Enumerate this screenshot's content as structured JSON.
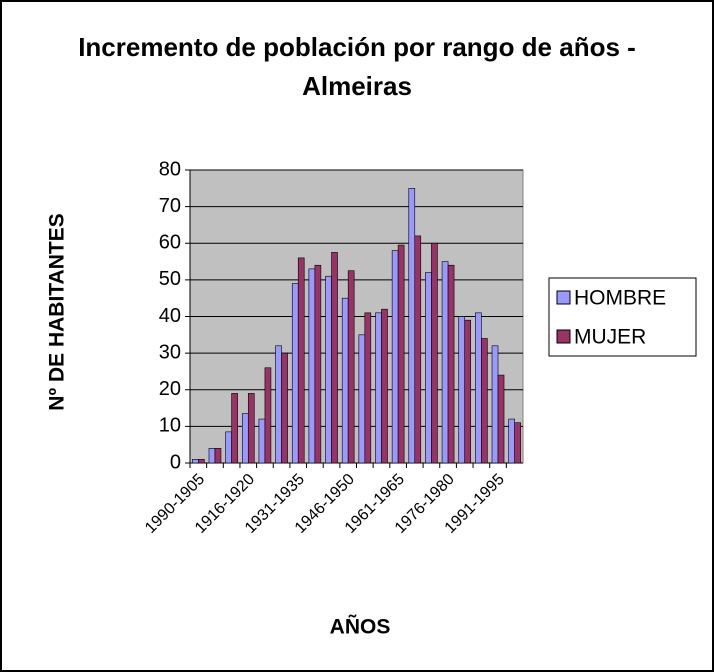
{
  "chart_data": {
    "type": "bar",
    "title": "Incremento de población por rango de años - Almeiras",
    "x_label": "AÑOS",
    "y_label": "Nº DE HABITANTES",
    "categories": [
      "1990-1905",
      null,
      null,
      "1916-1920",
      null,
      null,
      "1931-1935",
      null,
      null,
      "1946-1950",
      null,
      null,
      "1961-1965",
      null,
      null,
      "1976-1980",
      null,
      null,
      "1991-1995",
      null
    ],
    "series": [
      {
        "name": "HOMBRE",
        "color": "#9999ff",
        "values": [
          1,
          4,
          8.5,
          13.5,
          12,
          32,
          49,
          53,
          51,
          45,
          35,
          41,
          58,
          75,
          52,
          55,
          40,
          41,
          32,
          12
        ]
      },
      {
        "name": "MUJER",
        "color": "#993366",
        "values": [
          1,
          4,
          19,
          19,
          26,
          30,
          56,
          54,
          57.5,
          52.5,
          41,
          42,
          59.5,
          62,
          60,
          54,
          39,
          34,
          24,
          11
        ]
      }
    ],
    "ylim": [
      0,
      80
    ],
    "yticks": [
      0,
      10,
      20,
      30,
      40,
      50,
      60,
      70,
      80
    ],
    "grid": true,
    "plot_background": "#c0c0c0",
    "legend": "right"
  }
}
